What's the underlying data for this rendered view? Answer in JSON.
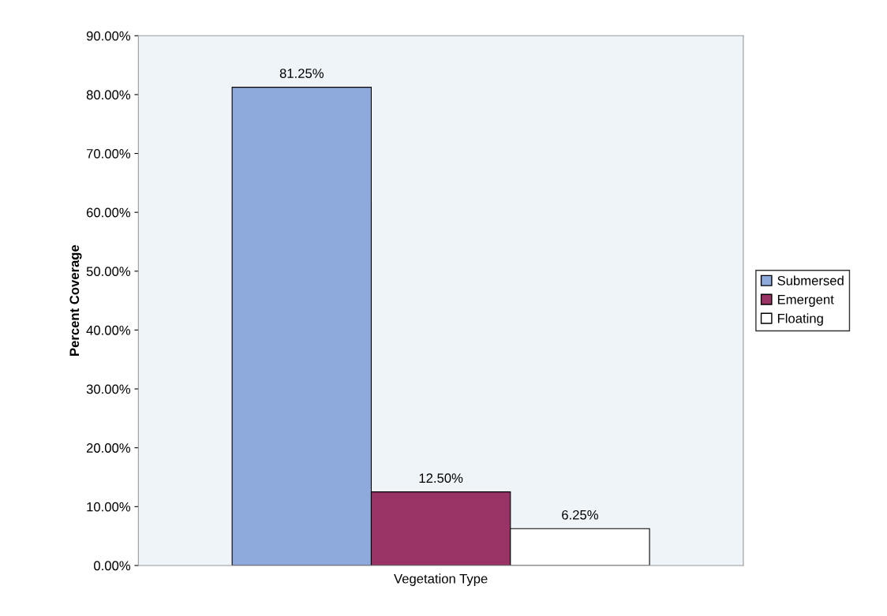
{
  "chart_data": {
    "type": "bar",
    "xlabel": "Vegetation Type",
    "ylabel": "Percent Coverage",
    "categories": [
      null
    ],
    "series": [
      {
        "name": "Submersed",
        "color": "#8ea9db",
        "values": [
          81.25
        ],
        "value_labels": [
          "81.25%"
        ]
      },
      {
        "name": "Emergent",
        "color": "#993366",
        "values": [
          12.5
        ],
        "value_labels": [
          "12.50%"
        ]
      },
      {
        "name": "Floating",
        "color": "#ffffff",
        "values": [
          6.25
        ],
        "value_labels": [
          "6.25%"
        ]
      }
    ],
    "ylim": [
      0,
      90
    ],
    "yticks": [
      {
        "value": 0,
        "label": "0.00%"
      },
      {
        "value": 10,
        "label": "10.00%"
      },
      {
        "value": 20,
        "label": "20.00%"
      },
      {
        "value": 30,
        "label": "30.00%"
      },
      {
        "value": 40,
        "label": "40.00%"
      },
      {
        "value": 50,
        "label": "50.00%"
      },
      {
        "value": 60,
        "label": "60.00%"
      },
      {
        "value": 70,
        "label": "70.00%"
      },
      {
        "value": 80,
        "label": "80.00%"
      },
      {
        "value": 90,
        "label": "90.00%"
      }
    ],
    "grid": false,
    "legend": "right"
  }
}
